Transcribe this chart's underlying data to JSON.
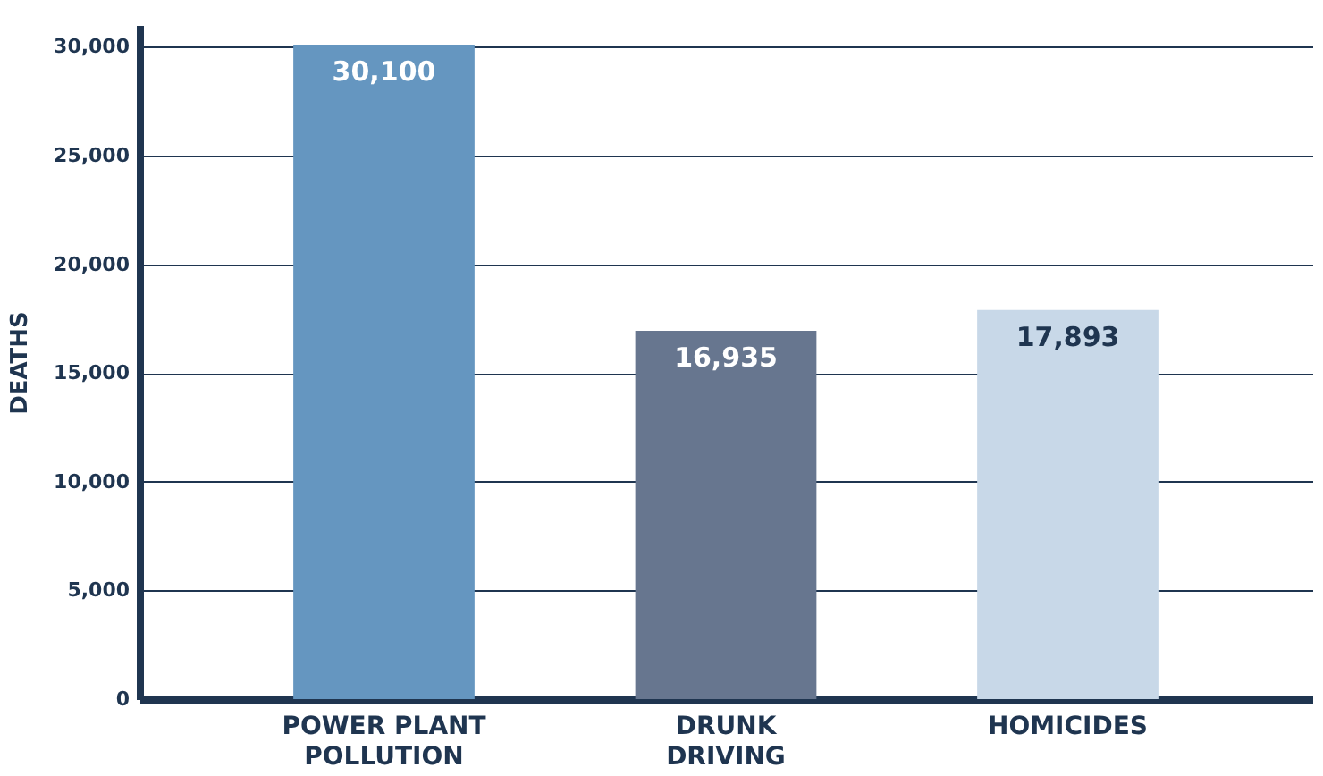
{
  "chart_data": {
    "type": "bar",
    "ylabel": "DEATHS",
    "categories": [
      "POWER PLANT POLLUTION",
      "DRUNK DRIVING",
      "HOMICIDES"
    ],
    "values": [
      30100,
      16935,
      17893
    ],
    "value_labels": [
      "30,100",
      "16,935",
      "17,893"
    ],
    "colors": [
      "#6596c0",
      "#67768f",
      "#c8d8e8"
    ],
    "ylim": [
      0,
      31000
    ],
    "yticks": [
      0,
      {
        "value": 5000,
        "label": "5,000"
      },
      {
        "value": 10000,
        "label": "10,000"
      },
      {
        "value": 15000,
        "label": "15,000"
      },
      {
        "value": 20000,
        "label": "20,000"
      },
      {
        "value": 25000,
        "label": "25,000"
      },
      {
        "value": 30000,
        "label": "30,000"
      }
    ],
    "grid": "y"
  }
}
